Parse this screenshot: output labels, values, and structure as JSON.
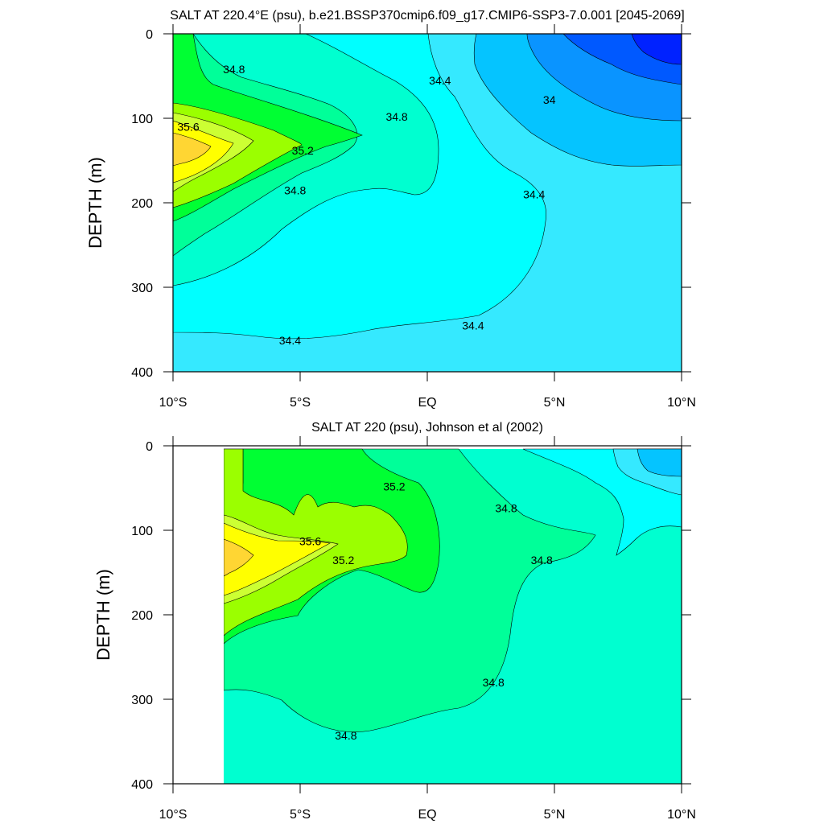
{
  "chart_data": [
    {
      "type": "contour",
      "title": "SALT AT 220.4°E (psu), b.e21.BSSP370cmip6.f09_g17.CMIP6-SSP3-7.0.001 [2045-2069]",
      "ylabel": "DEPTH (m)",
      "xlabel": "",
      "x_ticks": [
        "10°S",
        "5°S",
        "EQ",
        "5°N",
        "10°N"
      ],
      "y_ticks": [
        "0",
        "100",
        "200",
        "300",
        "400"
      ],
      "xlim": [
        -10,
        10
      ],
      "ylim": [
        400,
        0
      ],
      "contour_interval": 0.2,
      "fill_levels": [
        {
          "salinity_range": "<33.6",
          "color": "#0022ff"
        },
        {
          "salinity_range": "33.6-33.8",
          "color": "#0059ff"
        },
        {
          "salinity_range": "33.8-34.0",
          "color": "#0a94ff"
        },
        {
          "salinity_range": "34.0-34.2",
          "color": "#05c4ff"
        },
        {
          "salinity_range": "34.2-34.4",
          "color": "#35e9ff"
        },
        {
          "salinity_range": "34.4-34.6",
          "color": "#00ffff"
        },
        {
          "salinity_range": "34.6-34.8",
          "color": "#00ffd0"
        },
        {
          "salinity_range": "34.8-35.0",
          "color": "#00ff99"
        },
        {
          "salinity_range": "35.0-35.2",
          "color": "#00ff33"
        },
        {
          "salinity_range": "35.2-35.4",
          "color": "#9bff00"
        },
        {
          "salinity_range": "35.4-35.6",
          "color": "#ccff33"
        },
        {
          "salinity_range": "35.6-35.8",
          "color": "#ffff00"
        },
        {
          "salinity_range": ">35.8",
          "color": "#ffd633"
        }
      ],
      "contour_labels": [
        {
          "text": "34.8",
          "lat": -7.6,
          "depth": 42
        },
        {
          "text": "34.4",
          "lat": 0.5,
          "depth": 55
        },
        {
          "text": "34.8",
          "lat": -1.2,
          "depth": 98
        },
        {
          "text": "34",
          "lat": 4.8,
          "depth": 78
        },
        {
          "text": "35.6",
          "lat": -9.4,
          "depth": 110
        },
        {
          "text": "35.2",
          "lat": -4.9,
          "depth": 138
        },
        {
          "text": "34.8",
          "lat": -5.2,
          "depth": 185
        },
        {
          "text": "34.4",
          "lat": 4.2,
          "depth": 190
        },
        {
          "text": "34.4",
          "lat": 1.8,
          "depth": 345
        },
        {
          "text": "34.4",
          "lat": -5.4,
          "depth": 363
        }
      ]
    },
    {
      "type": "contour",
      "title": "SALT AT 220 (psu), Johnson et al (2002)",
      "ylabel": "DEPTH (m)",
      "xlabel": "",
      "x_ticks": [
        "10°S",
        "5°S",
        "EQ",
        "5°N",
        "10°N"
      ],
      "y_ticks": [
        "0",
        "100",
        "200",
        "300",
        "400"
      ],
      "xlim": [
        -10,
        10
      ],
      "ylim": [
        400,
        0
      ],
      "data_x_range": [
        -8,
        10
      ],
      "contour_interval": 0.2,
      "contour_labels": [
        {
          "text": "35.2",
          "lat": -1.3,
          "depth": 48
        },
        {
          "text": "34.8",
          "lat": 3.1,
          "depth": 74
        },
        {
          "text": "35.6",
          "lat": -4.6,
          "depth": 113
        },
        {
          "text": "34.8",
          "lat": 4.5,
          "depth": 135
        },
        {
          "text": "35.2",
          "lat": -3.3,
          "depth": 135
        },
        {
          "text": "34.8",
          "lat": 2.6,
          "depth": 280
        },
        {
          "text": "34.8",
          "lat": -3.2,
          "depth": 343
        }
      ]
    }
  ]
}
